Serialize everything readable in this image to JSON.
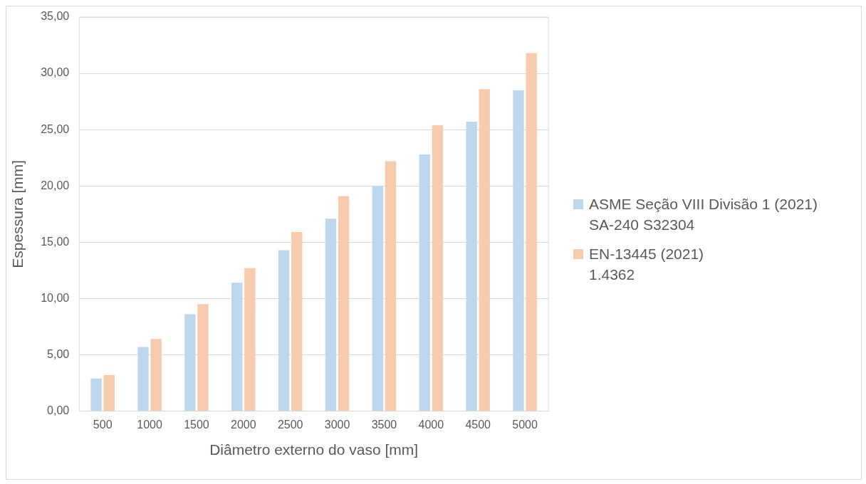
{
  "chart_data": {
    "type": "bar",
    "xlabel": "Diâmetro externo do vaso [mm]",
    "ylabel": "Espessura [mm]",
    "categories": [
      "500",
      "1000",
      "1500",
      "2000",
      "2500",
      "3000",
      "3500",
      "4000",
      "4500",
      "5000"
    ],
    "series": [
      {
        "name": "ASME Seção VIII Divisão 1 (2021)\nSA-240 S32304",
        "color": "#bdd7ee",
        "values": [
          2.9,
          5.7,
          8.6,
          11.4,
          14.3,
          17.1,
          20.0,
          22.8,
          25.7,
          28.5
        ]
      },
      {
        "name": "EN-13445 (2021)\n1.4362",
        "color": "#f8cbad",
        "values": [
          3.2,
          6.4,
          9.5,
          12.7,
          15.9,
          19.1,
          22.2,
          25.4,
          28.6,
          31.8
        ]
      }
    ],
    "ylim": [
      0,
      35
    ],
    "yticks": [
      {
        "value": 0,
        "label": "0,00"
      },
      {
        "value": 5,
        "label": "5,00"
      },
      {
        "value": 10,
        "label": "10,00"
      },
      {
        "value": 15,
        "label": "15,00"
      },
      {
        "value": 20,
        "label": "20,00"
      },
      {
        "value": 25,
        "label": "25,00"
      },
      {
        "value": 30,
        "label": "30,00"
      },
      {
        "value": 35,
        "label": "35,00"
      }
    ],
    "grid": "y",
    "legend": "right"
  }
}
